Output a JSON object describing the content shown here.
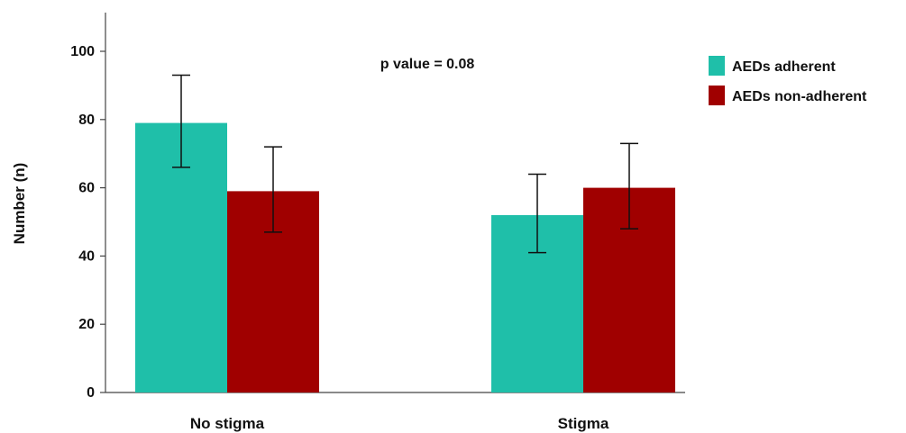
{
  "chart_data": {
    "type": "bar",
    "categories": [
      "No stigma",
      "Stigma"
    ],
    "series": [
      {
        "name": "AEDs adherent",
        "color": "#1fbfa9",
        "values": [
          79,
          52
        ],
        "error_low": [
          66,
          41
        ],
        "error_high": [
          93,
          64
        ]
      },
      {
        "name": "AEDs non-adherent",
        "color": "#a00000",
        "values": [
          59,
          60
        ],
        "error_low": [
          47,
          48
        ],
        "error_high": [
          72,
          73
        ]
      }
    ],
    "title": "",
    "xlabel": "",
    "ylabel": "Number (n)",
    "ylim": [
      0,
      110
    ],
    "yticks": [
      0,
      20,
      40,
      60,
      80,
      100
    ],
    "annotation": "p value = 0.08",
    "legend_position": "top-right",
    "grid": false
  }
}
